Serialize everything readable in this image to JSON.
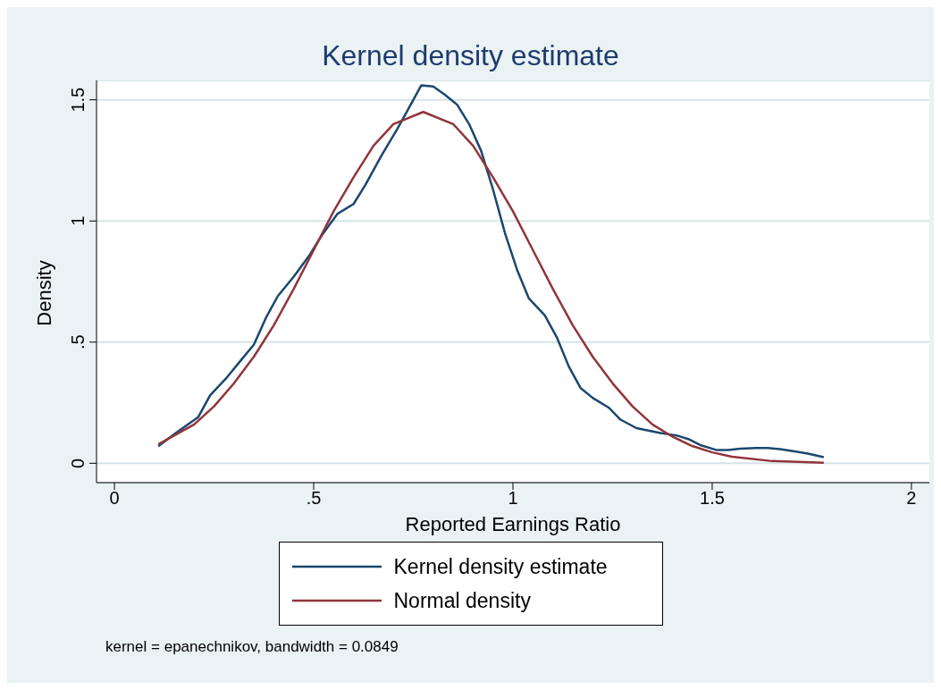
{
  "chart_data": {
    "type": "line",
    "title": "Kernel density estimate",
    "xlabel": "Reported Earnings Ratio",
    "ylabel": "Density",
    "xlim": [
      -0.045,
      2.045
    ],
    "ylim": [
      -0.08,
      1.58
    ],
    "xticks": [
      0,
      {
        "value": 0.5,
        "label": ".5"
      },
      1,
      1.5,
      2
    ],
    "yticks": [
      0,
      {
        "value": 0.5,
        "label": ".5"
      },
      1,
      1.5
    ],
    "grid": "y",
    "legend": "bottom",
    "annotations": [
      "kernel = epanechnikov, bandwidth = 0.0849"
    ],
    "series": [
      {
        "name": "Kernel density estimate",
        "color": "#1a476f",
        "x": [
          0.11,
          0.15,
          0.21,
          0.24,
          0.28,
          0.31,
          0.35,
          0.38,
          0.41,
          0.45,
          0.49,
          0.52,
          0.56,
          0.6,
          0.63,
          0.67,
          0.71,
          0.74,
          0.77,
          0.8,
          0.83,
          0.86,
          0.89,
          0.92,
          0.95,
          0.98,
          1.01,
          1.04,
          1.08,
          1.11,
          1.14,
          1.17,
          1.2,
          1.24,
          1.27,
          1.31,
          1.34,
          1.37,
          1.41,
          1.44,
          1.47,
          1.51,
          1.54,
          1.57,
          1.61,
          1.64,
          1.67,
          1.71,
          1.74,
          1.78
        ],
        "values": [
          0.07,
          0.12,
          0.19,
          0.28,
          0.35,
          0.41,
          0.49,
          0.6,
          0.69,
          0.77,
          0.86,
          0.94,
          1.03,
          1.07,
          1.15,
          1.27,
          1.38,
          1.47,
          1.56,
          1.555,
          1.52,
          1.48,
          1.4,
          1.29,
          1.13,
          0.95,
          0.8,
          0.68,
          0.61,
          0.52,
          0.4,
          0.31,
          0.27,
          0.23,
          0.18,
          0.145,
          0.135,
          0.125,
          0.115,
          0.1,
          0.075,
          0.055,
          0.055,
          0.06,
          0.063,
          0.063,
          0.058,
          0.048,
          0.04,
          0.025
        ]
      },
      {
        "name": "Normal density",
        "color": "#90353b",
        "x": [
          0.11,
          0.2,
          0.25,
          0.3,
          0.35,
          0.4,
          0.45,
          0.5,
          0.55,
          0.6,
          0.65,
          0.7,
          0.775,
          0.85,
          0.9,
          0.95,
          1.0,
          1.05,
          1.1,
          1.15,
          1.2,
          1.25,
          1.3,
          1.35,
          1.4,
          1.45,
          1.5,
          1.55,
          1.65,
          1.78
        ],
        "values": [
          0.078,
          0.16,
          0.235,
          0.33,
          0.44,
          0.57,
          0.72,
          0.88,
          1.04,
          1.18,
          1.31,
          1.4,
          1.45,
          1.4,
          1.31,
          1.18,
          1.04,
          0.88,
          0.72,
          0.57,
          0.44,
          0.33,
          0.235,
          0.16,
          0.11,
          0.071,
          0.045,
          0.027,
          0.009,
          0.002
        ]
      }
    ]
  }
}
